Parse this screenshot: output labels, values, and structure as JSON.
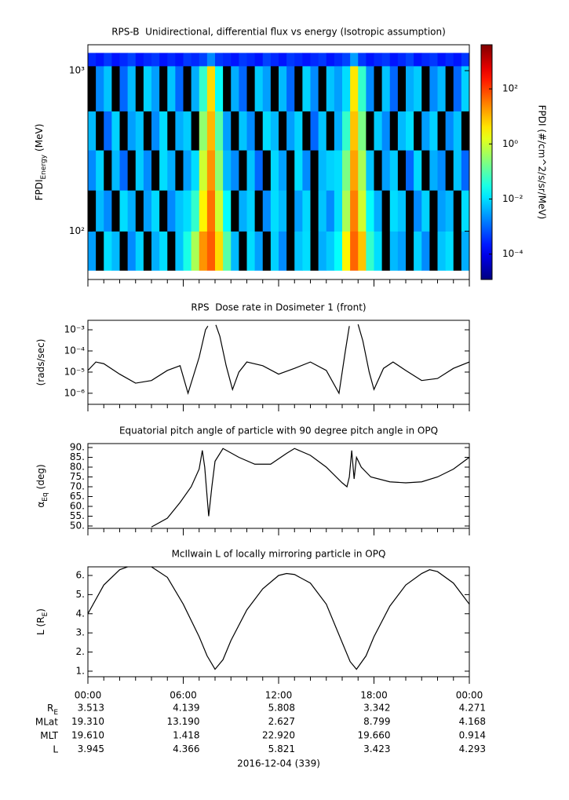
{
  "chart_data": [
    {
      "type": "heatmap",
      "title": "RPS-B  Unidirectional, differential flux vs energy (Isotropic assumption)",
      "ylabel": [
        "FPDI",
        "Energy",
        "(MeV)"
      ],
      "xlim": [
        0,
        24
      ],
      "xticks": [
        0,
        6,
        12,
        18,
        24
      ],
      "ylog": true,
      "ylim": [
        50,
        1450
      ],
      "yticks": [
        {
          "value": 100,
          "label": "10²"
        },
        {
          "value": 1000,
          "label": "10³"
        }
      ],
      "x": [
        0,
        0.5,
        1,
        1.5,
        2,
        2.5,
        3,
        3.5,
        4,
        4.5,
        5,
        5.5,
        6,
        6.5,
        7,
        7.5,
        8,
        8.5,
        9,
        9.5,
        10,
        10.5,
        11,
        11.5,
        12,
        12.5,
        13,
        13.5,
        14,
        14.5,
        15,
        15.5,
        16,
        16.5,
        17,
        17.5,
        18,
        18.5,
        19,
        19.5,
        20,
        20.5,
        21,
        21.5,
        22,
        22.5,
        23,
        23.5,
        24
      ],
      "y_bins": [
        57,
        100,
        180,
        320,
        560,
        1070,
        1290
      ],
      "z": [
        [
          0.003,
          null,
          0.01,
          0.005,
          null,
          0.002,
          0.008,
          null,
          0.004,
          0.01,
          null,
          0.006,
          0.03,
          0.5,
          20,
          60,
          5,
          0.1,
          0.005,
          null,
          0.01,
          0.003,
          null,
          0.008,
          0.002,
          null,
          0.006,
          0.01,
          null,
          0.004,
          0.007,
          0.02,
          3,
          50,
          8,
          0.05,
          0.01,
          null,
          0.005,
          0.003,
          null,
          0.008,
          0.002,
          null,
          0.006,
          0.01,
          null,
          0.004
        ],
        [
          null,
          0.005,
          0.002,
          null,
          0.01,
          0.004,
          null,
          0.003,
          0.009,
          null,
          0.002,
          0.006,
          0.01,
          0.05,
          3,
          40,
          1,
          0.02,
          null,
          0.004,
          0.008,
          null,
          0.002,
          0.01,
          0.005,
          null,
          0.003,
          0.009,
          null,
          0.006,
          0.002,
          0.01,
          0.5,
          30,
          1,
          0.02,
          0.004,
          null,
          0.01,
          0.006,
          null,
          0.002,
          0.008,
          null,
          0.003,
          0.005,
          null,
          0.01
        ],
        [
          0.002,
          0.008,
          null,
          0.005,
          0.001,
          null,
          0.007,
          0.002,
          null,
          0.01,
          0.004,
          null,
          0.003,
          0.01,
          1,
          20,
          0.3,
          0.005,
          0.002,
          null,
          0.006,
          0.001,
          null,
          0.009,
          0.003,
          null,
          0.01,
          0.002,
          null,
          0.005,
          0.008,
          0.01,
          0.2,
          15,
          0.5,
          0.006,
          null,
          0.003,
          0.007,
          null,
          0.001,
          0.009,
          null,
          0.004,
          0.002,
          null,
          0.006,
          0.001
        ],
        [
          0.005,
          null,
          0.001,
          0.008,
          null,
          0.003,
          0.006,
          null,
          0.002,
          0.01,
          null,
          0.004,
          0.007,
          null,
          0.3,
          10,
          0.1,
          0.003,
          null,
          0.006,
          0.002,
          null,
          0.01,
          0.005,
          null,
          0.003,
          0.008,
          null,
          0.001,
          0.006,
          null,
          0.004,
          0.05,
          8,
          0.2,
          null,
          0.007,
          0.002,
          null,
          0.005,
          0.01,
          null,
          0.003,
          0.008,
          null,
          0.002,
          0.006,
          null
        ],
        [
          null,
          0.002,
          0.006,
          null,
          0.001,
          0.005,
          null,
          0.008,
          0.003,
          null,
          0.006,
          0.001,
          null,
          0.004,
          0.05,
          5,
          0.02,
          null,
          0.004,
          0.001,
          null,
          0.007,
          0.003,
          null,
          0.005,
          0.001,
          null,
          0.008,
          0.002,
          null,
          0.006,
          0.003,
          0.01,
          4,
          0.05,
          0.002,
          null,
          0.006,
          0.001,
          null,
          0.004,
          0.007,
          null,
          0.002,
          0.005,
          null,
          0.001,
          0.008
        ],
        [
          0.0003,
          0.0002,
          0.0004,
          0.0002,
          0.0003,
          0.0005,
          0.0002,
          0.0003,
          0.0004,
          0.0002,
          0.0003,
          0.0002,
          0.0004,
          0.0003,
          0.0005,
          0.002,
          0.0004,
          0.0003,
          0.0002,
          0.0004,
          0.0003,
          0.0002,
          0.0005,
          0.0003,
          0.0002,
          0.0004,
          0.0003,
          0.0002,
          0.0003,
          0.0004,
          0.0002,
          0.0003,
          0.0005,
          0.003,
          0.0004,
          0.0002,
          0.0003,
          0.0004,
          0.0002,
          0.0003,
          0.0005,
          0.0002,
          0.0003,
          0.0004,
          0.0002,
          0.0003,
          0.0002,
          0.0004
        ]
      ],
      "colormap": "jet",
      "colorbar": {
        "label": "FPDI (#/cm^2/s/sr/MeV)",
        "lim": [
          1.2e-05,
          4000
        ],
        "ticks": [
          {
            "value": 0.0001,
            "label": "10⁻⁴"
          },
          {
            "value": 0.01,
            "label": "10⁻²"
          },
          {
            "value": 1,
            "label": "10⁰"
          },
          {
            "value": 100,
            "label": "10²"
          }
        ]
      }
    },
    {
      "type": "line",
      "title": "RPS  Dose rate in Dosimeter 1 (front)",
      "ylabel": [
        "(rads/sec)"
      ],
      "xlim": [
        0,
        24
      ],
      "xticks": [
        0,
        6,
        12,
        18,
        24
      ],
      "ylog": true,
      "ylim": [
        3e-07,
        0.0028
      ],
      "yticks": [
        {
          "value": 0.001,
          "label": "10⁻³"
        },
        {
          "value": 0.0001,
          "label": "10⁻⁴"
        },
        {
          "value": 1e-05,
          "label": "10⁻⁵"
        },
        {
          "value": 1e-06,
          "label": "10⁻⁶"
        }
      ],
      "color": "#000000",
      "x": [
        0,
        0.5,
        1,
        2,
        3,
        4,
        5,
        5.8,
        6.3,
        7.0,
        7.4,
        7.55,
        7.7,
        8.05,
        8.3,
        8.7,
        9.1,
        9.5,
        10,
        11,
        12,
        13,
        14,
        15,
        15.8,
        16.2,
        16.45,
        16.7,
        17.0,
        17.3,
        17.7,
        18.0,
        18.6,
        19.2,
        20,
        21,
        22,
        23,
        24
      ],
      "values": [
        1.2e-05,
        3e-05,
        2.5e-05,
        8e-06,
        3e-06,
        4e-06,
        1.2e-05,
        2e-05,
        1e-06,
        5e-05,
        0.001,
        0.0015,
        null,
        0.0017,
        0.0005,
        2e-05,
        1.5e-06,
        1e-05,
        3e-05,
        2e-05,
        8e-06,
        1.5e-05,
        3e-05,
        1.2e-05,
        1e-06,
        0.0001,
        0.0015,
        null,
        0.0018,
        0.0003,
        1e-05,
        1.5e-06,
        1.5e-05,
        3e-05,
        1.2e-05,
        4e-06,
        5e-06,
        1.5e-05,
        3e-05
      ]
    },
    {
      "type": "line",
      "title": "Equatorial pitch angle of particle with 90 degree pitch angle in OPQ",
      "ylabel": [
        "α",
        "Eq",
        "(deg)"
      ],
      "xlim": [
        0,
        24
      ],
      "xticks": [
        0,
        6,
        12,
        18,
        24
      ],
      "ylim": [
        48.8,
        92
      ],
      "yticks": [
        {
          "value": 90,
          "label": "90."
        },
        {
          "value": 85,
          "label": "85."
        },
        {
          "value": 80,
          "label": "80."
        },
        {
          "value": 75,
          "label": "75."
        },
        {
          "value": 70,
          "label": "70."
        },
        {
          "value": 65,
          "label": "65."
        },
        {
          "value": 60,
          "label": "60."
        },
        {
          "value": 55,
          "label": "55."
        },
        {
          "value": 50,
          "label": "50."
        }
      ],
      "color": "#000000",
      "x": [
        4,
        5,
        5.8,
        6.5,
        7.0,
        7.2,
        7.35,
        7.6,
        7.8,
        8.0,
        8.5,
        9.5,
        10.5,
        11.5,
        12.5,
        13.0,
        14,
        15,
        16,
        16.3,
        16.45,
        16.6,
        16.75,
        16.9,
        17.2,
        17.8,
        19,
        20,
        21,
        22,
        23,
        24
      ],
      "values": [
        49.5,
        54,
        62,
        70,
        79,
        88.5,
        80,
        55,
        70,
        83,
        89.5,
        85,
        81.5,
        81.5,
        87,
        89.5,
        86,
        80,
        72,
        70,
        75,
        88.5,
        74,
        85,
        80,
        75,
        72.5,
        72,
        72.5,
        75,
        79,
        85
      ]
    },
    {
      "type": "line",
      "title": "McIlwain L of locally mirroring particle in OPQ",
      "ylabel": [
        "L (R",
        "E",
        ")"
      ],
      "xlim": [
        0,
        24
      ],
      "xticks": [
        {
          "value": 0,
          "label": "00:00"
        },
        {
          "value": 6,
          "label": "06:00"
        },
        {
          "value": 12,
          "label": "12:00"
        },
        {
          "value": 18,
          "label": "18:00"
        },
        {
          "value": 24,
          "label": "00:00"
        }
      ],
      "ylim": [
        0.71,
        6.45
      ],
      "yticks": [
        {
          "value": 6,
          "label": "6."
        },
        {
          "value": 5,
          "label": "5."
        },
        {
          "value": 4,
          "label": "4."
        },
        {
          "value": 3,
          "label": "3."
        },
        {
          "value": 2,
          "label": "2."
        },
        {
          "value": 1,
          "label": "1."
        }
      ],
      "color": "#000000",
      "x": [
        0,
        1,
        2,
        3,
        4,
        5,
        6,
        7,
        7.5,
        8,
        8.5,
        9,
        10,
        11,
        12,
        12.5,
        13,
        14,
        15,
        16,
        16.5,
        16.9,
        17.5,
        18,
        19,
        20,
        21,
        21.5,
        22,
        23,
        24
      ],
      "values": [
        4.0,
        5.5,
        6.3,
        6.6,
        6.45,
        5.9,
        4.5,
        2.8,
        1.8,
        1.1,
        1.6,
        2.6,
        4.2,
        5.3,
        6.0,
        6.1,
        6.05,
        5.6,
        4.5,
        2.5,
        1.5,
        1.1,
        1.8,
        2.8,
        4.4,
        5.5,
        6.1,
        6.3,
        6.2,
        5.6,
        4.5
      ]
    }
  ],
  "ephemeris": [
    {
      "label": [
        "R",
        "E"
      ],
      "values": [
        "3.513",
        "4.139",
        "5.808",
        "3.342",
        "4.271"
      ]
    },
    {
      "label": [
        "MLat"
      ],
      "values": [
        "19.310",
        "13.190",
        "2.627",
        "8.799",
        "4.168"
      ]
    },
    {
      "label": [
        "MLT"
      ],
      "values": [
        "19.610",
        "1.418",
        "22.920",
        "19.660",
        "0.914"
      ]
    },
    {
      "label": [
        "L"
      ],
      "values": [
        "3.945",
        "4.366",
        "5.821",
        "3.423",
        "4.293"
      ]
    }
  ],
  "date_label": "2016-12-04 (339)"
}
